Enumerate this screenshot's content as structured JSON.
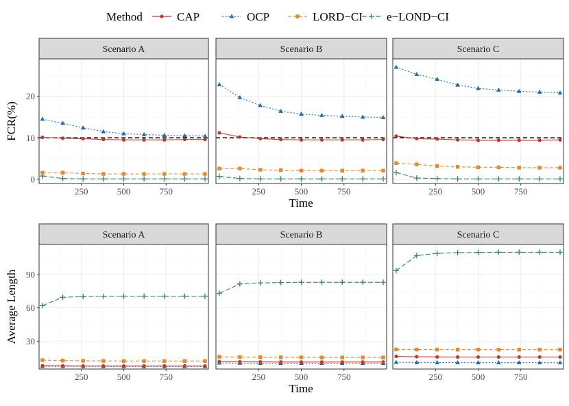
{
  "legend": {
    "title": "Method",
    "entries": [
      {
        "name": "CAP",
        "color": "#C0392B",
        "linestyle": "solid",
        "marker": "circle"
      },
      {
        "name": "OCP",
        "color": "#1F6FAE",
        "linestyle": "dotted",
        "marker": "triangle"
      },
      {
        "name": "LORD−CI",
        "color": "#E38A2C",
        "linestyle": "dashed",
        "marker": "square"
      },
      {
        "name": "e−LOND−CI",
        "color": "#2E8B57",
        "linestyle": "longdash",
        "marker": "plus"
      }
    ]
  },
  "chart_data": [
    {
      "type": "line",
      "row": "FCR",
      "panel": "Scenario A",
      "xlabel": "Time",
      "ylabel": "FCR(%)",
      "x": [
        20,
        140,
        260,
        380,
        500,
        620,
        740,
        860,
        980
      ],
      "xticks": [
        250,
        500,
        750
      ],
      "xlim": [
        0,
        1000
      ],
      "yticks": [
        0,
        10,
        20
      ],
      "ylim": [
        -1,
        29
      ],
      "reference_line": 10,
      "series": [
        {
          "name": "CAP",
          "values": [
            10.1,
            9.9,
            9.8,
            9.6,
            9.5,
            9.5,
            9.5,
            9.6,
            9.6
          ]
        },
        {
          "name": "OCP",
          "values": [
            14.5,
            13.5,
            12.4,
            11.5,
            11.0,
            10.8,
            10.6,
            10.5,
            10.4
          ]
        },
        {
          "name": "LORD−CI",
          "values": [
            1.6,
            1.6,
            1.4,
            1.3,
            1.3,
            1.3,
            1.3,
            1.3,
            1.3
          ]
        },
        {
          "name": "e−LOND−CI",
          "values": [
            0.8,
            0.2,
            0.1,
            0.1,
            0.1,
            0.1,
            0.1,
            0.1,
            0.1
          ]
        }
      ]
    },
    {
      "type": "line",
      "row": "FCR",
      "panel": "Scenario B",
      "xlabel": "Time",
      "ylabel": "FCR(%)",
      "x": [
        20,
        140,
        260,
        380,
        500,
        620,
        740,
        860,
        980
      ],
      "xticks": [
        250,
        500,
        750
      ],
      "xlim": [
        0,
        1000
      ],
      "yticks": [
        0,
        10,
        20
      ],
      "ylim": [
        -1,
        29
      ],
      "reference_line": 10,
      "series": [
        {
          "name": "CAP",
          "values": [
            11.2,
            10.2,
            9.8,
            9.6,
            9.5,
            9.5,
            9.5,
            9.5,
            9.6
          ]
        },
        {
          "name": "OCP",
          "values": [
            22.8,
            19.7,
            17.8,
            16.4,
            15.7,
            15.4,
            15.2,
            15.0,
            14.9
          ]
        },
        {
          "name": "LORD−CI",
          "values": [
            2.6,
            2.6,
            2.3,
            2.2,
            2.1,
            2.1,
            2.1,
            2.1,
            2.1
          ]
        },
        {
          "name": "e−LOND−CI",
          "values": [
            0.7,
            0.2,
            0.1,
            0.1,
            0.1,
            0.1,
            0.1,
            0.1,
            0.1
          ]
        }
      ]
    },
    {
      "type": "line",
      "row": "FCR",
      "panel": "Scenario C",
      "xlabel": "Time",
      "ylabel": "FCR(%)",
      "x": [
        20,
        140,
        260,
        380,
        500,
        620,
        740,
        860,
        980
      ],
      "xticks": [
        250,
        500,
        750
      ],
      "xlim": [
        0,
        1000
      ],
      "yticks": [
        0,
        10,
        20
      ],
      "ylim": [
        -1,
        29
      ],
      "reference_line": 10,
      "series": [
        {
          "name": "CAP",
          "values": [
            10.4,
            9.8,
            9.7,
            9.5,
            9.4,
            9.4,
            9.4,
            9.4,
            9.5
          ]
        },
        {
          "name": "OCP",
          "values": [
            27.0,
            25.3,
            24.1,
            22.7,
            21.9,
            21.5,
            21.2,
            21.0,
            20.8
          ]
        },
        {
          "name": "LORD−CI",
          "values": [
            3.9,
            3.6,
            3.2,
            3.0,
            2.9,
            2.9,
            2.8,
            2.8,
            2.8
          ]
        },
        {
          "name": "e−LOND−CI",
          "values": [
            1.6,
            0.3,
            0.2,
            0.1,
            0.1,
            0.1,
            0.1,
            0.1,
            0.1
          ]
        }
      ]
    },
    {
      "type": "line",
      "row": "Average Length",
      "panel": "Scenario A",
      "xlabel": "Time",
      "ylabel": "Average Length",
      "x": [
        20,
        140,
        260,
        380,
        500,
        620,
        740,
        860,
        980
      ],
      "xticks": [
        250,
        500,
        750
      ],
      "xlim": [
        0,
        1000
      ],
      "yticks": [
        30,
        60,
        90
      ],
      "ylim": [
        5,
        117
      ],
      "series": [
        {
          "name": "CAP",
          "values": [
            8.0,
            7.9,
            7.8,
            7.8,
            7.8,
            7.8,
            7.8,
            7.8,
            7.8
          ]
        },
        {
          "name": "OCP",
          "values": [
            7.5,
            7.4,
            7.4,
            7.3,
            7.3,
            7.3,
            7.3,
            7.3,
            7.3
          ]
        },
        {
          "name": "LORD−CI",
          "values": [
            13.0,
            12.6,
            12.4,
            12.3,
            12.2,
            12.2,
            12.2,
            12.2,
            12.2
          ]
        },
        {
          "name": "e−LOND−CI",
          "values": [
            62.0,
            69.5,
            70.2,
            70.4,
            70.5,
            70.5,
            70.5,
            70.5,
            70.5
          ]
        }
      ]
    },
    {
      "type": "line",
      "row": "Average Length",
      "panel": "Scenario B",
      "xlabel": "Time",
      "ylabel": "Average Length",
      "x": [
        20,
        140,
        260,
        380,
        500,
        620,
        740,
        860,
        980
      ],
      "xticks": [
        250,
        500,
        750
      ],
      "xlim": [
        0,
        1000
      ],
      "yticks": [
        30,
        60,
        90
      ],
      "ylim": [
        5,
        117
      ],
      "series": [
        {
          "name": "CAP",
          "values": [
            11.7,
            11.5,
            11.4,
            11.3,
            11.3,
            11.3,
            11.3,
            11.3,
            11.3
          ]
        },
        {
          "name": "OCP",
          "values": [
            10.5,
            10.3,
            10.2,
            10.2,
            10.2,
            10.2,
            10.2,
            10.2,
            10.2
          ]
        },
        {
          "name": "LORD−CI",
          "values": [
            16.0,
            15.8,
            15.6,
            15.5,
            15.5,
            15.4,
            15.4,
            15.4,
            15.4
          ]
        },
        {
          "name": "e−LOND−CI",
          "values": [
            73.0,
            81.5,
            82.4,
            82.8,
            83.0,
            83.0,
            83.0,
            83.0,
            83.0
          ]
        }
      ]
    },
    {
      "type": "line",
      "row": "Average Length",
      "panel": "Scenario C",
      "xlabel": "Time",
      "ylabel": "Average Length",
      "x": [
        20,
        140,
        260,
        380,
        500,
        620,
        740,
        860,
        980
      ],
      "xticks": [
        250,
        500,
        750
      ],
      "xlim": [
        0,
        1000
      ],
      "yticks": [
        30,
        60,
        90
      ],
      "ylim": [
        5,
        117
      ],
      "series": [
        {
          "name": "CAP",
          "values": [
            16.4,
            16.1,
            15.9,
            15.8,
            15.8,
            15.8,
            15.8,
            15.8,
            15.8
          ]
        },
        {
          "name": "OCP",
          "values": [
            11.1,
            10.9,
            10.8,
            10.8,
            10.7,
            10.7,
            10.7,
            10.7,
            10.7
          ]
        },
        {
          "name": "LORD−CI",
          "values": [
            22.6,
            22.5,
            22.5,
            22.4,
            22.4,
            22.4,
            22.4,
            22.4,
            22.4
          ]
        },
        {
          "name": "e−LOND−CI",
          "values": [
            93.5,
            107.0,
            109.0,
            109.6,
            109.8,
            110.0,
            110.0,
            110.0,
            110.0
          ]
        }
      ]
    }
  ]
}
